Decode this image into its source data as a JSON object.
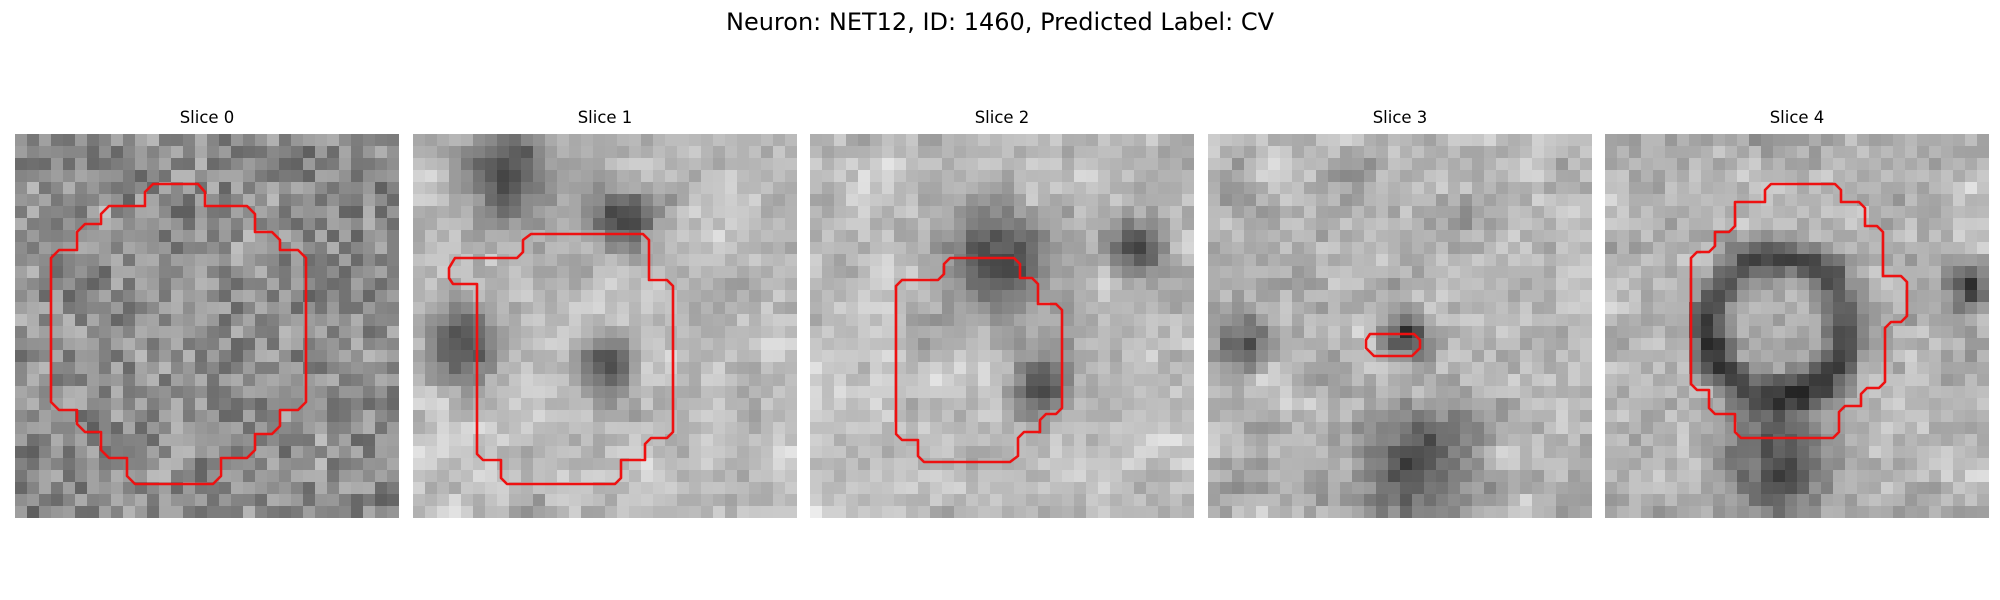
{
  "figure": {
    "title": "Neuron: NET12, ID: 1460, Predicted Label: CV",
    "contour_color": "#ee1111",
    "panels": [
      {
        "title": "Slice 0"
      },
      {
        "title": "Slice 1"
      },
      {
        "title": "Slice 2"
      },
      {
        "title": "Slice 3"
      },
      {
        "title": "Slice 4"
      }
    ]
  }
}
